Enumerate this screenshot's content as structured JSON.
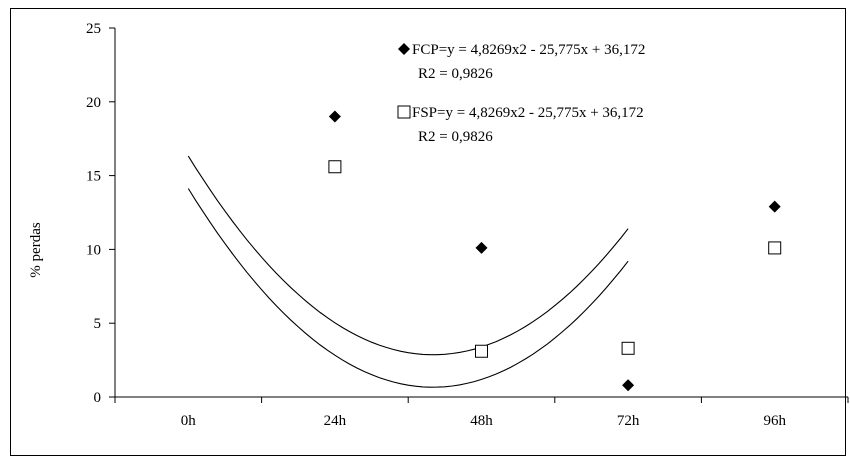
{
  "chart_data": {
    "type": "scatter",
    "title": "",
    "xlabel": "",
    "ylabel": "% perdas",
    "categories": [
      "0h",
      "24h",
      "48h",
      "72h",
      "96h"
    ],
    "ylim": [
      0,
      25
    ],
    "yticks": [
      0,
      5,
      10,
      15,
      20,
      25
    ],
    "grid": false,
    "legend_position": "top-right",
    "series": [
      {
        "name": "FCP",
        "marker": "filled-diamond",
        "color": "#000000",
        "points": [
          {
            "x": "24h",
            "y": 19.0
          },
          {
            "x": "48h",
            "y": 10.1
          },
          {
            "x": "72h",
            "y": 0.8
          },
          {
            "x": "96h",
            "y": 12.9
          }
        ],
        "trend_label": "FCP=y = 4,8269x2 - 25,775x + 36,172",
        "r2_label": "R2 = 0,9826",
        "trend": {
          "a": 4.8269,
          "b": -25.775,
          "c": 36.172
        }
      },
      {
        "name": "FSP",
        "marker": "open-square",
        "color": "#000000",
        "points": [
          {
            "x": "24h",
            "y": 15.6
          },
          {
            "x": "48h",
            "y": 3.1
          },
          {
            "x": "72h",
            "y": 3.3
          },
          {
            "x": "96h",
            "y": 10.1
          }
        ],
        "trend_label": "FSP=y = 4,8269x2 - 25,775x + 36,172",
        "r2_label": "R2 = 0,9826",
        "trend": {
          "a": 4.8269,
          "b": -25.775,
          "c": 36.172
        }
      }
    ]
  }
}
